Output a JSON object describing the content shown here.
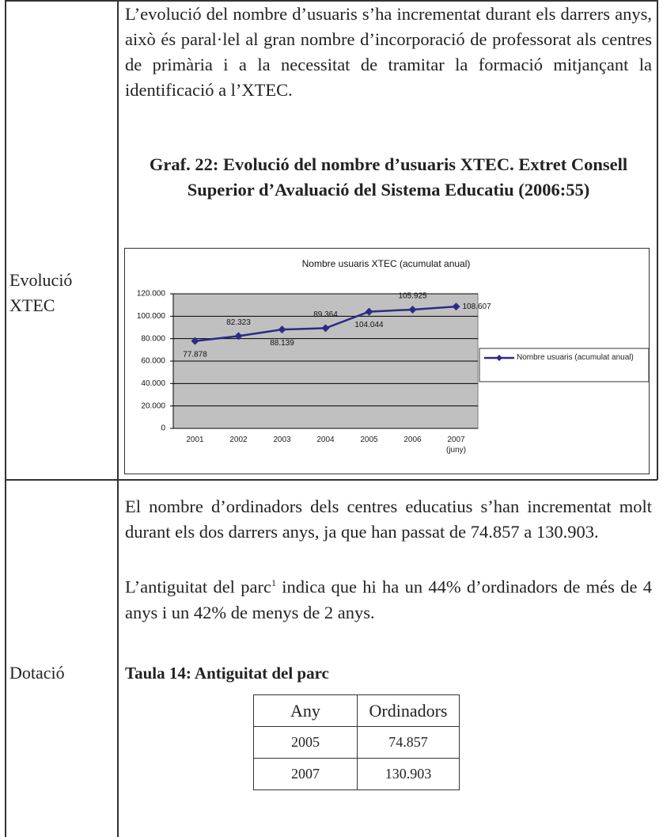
{
  "rows": [
    {
      "label": "Evolució XTEC",
      "paragraph": "L’evolució del nombre d’usuaris s’ha incrementat durant els darrers anys, això és paral·lel al gran nombre d’incorporació de professorat als centres de primària i a la necessitat de tramitar la formació mitjançant la identificació a l’XTEC.",
      "caption": "Graf. 22: Evolució del nombre d’usuaris XTEC. Extret Consell Superior d’Avaluació del Sistema Educatiu (2006:55)"
    },
    {
      "label": "Dotació",
      "paragraph": "El nombre d’ordinadors dels centres educatius s’han incrementat molt durant els dos darrers anys, ja que han passat de 74.857 a 130.903.",
      "paragraph2": {
        "before": "L’antiguitat del parc",
        "footnote": "1",
        "after": " indica que hi ha un 44% d’ordinadors de més de 4 anys i un 42% de menys de 2 anys."
      },
      "heading": "Taula 14: Antiguitat del parc"
    }
  ],
  "chart_data": {
    "type": "line",
    "title": "Nombre usuaris XTEC (acumulat anual)",
    "categories": [
      "2001",
      "2002",
      "2003",
      "2004",
      "2005",
      "2006",
      "2007 (juny)"
    ],
    "series": [
      {
        "name": "Nombre usuaris (acumulat anual)",
        "color": "#2b2b86",
        "values": [
          77878,
          82323,
          88139,
          89364,
          104044,
          105925,
          108607
        ],
        "value_labels": [
          "77.878",
          "82.323",
          "88.139",
          "89.364",
          "104.044",
          "105.925",
          "108.607"
        ]
      }
    ],
    "ylim": [
      0,
      120000
    ],
    "yticks": [
      {
        "value": 0,
        "label": "0"
      },
      {
        "value": 20000,
        "label": "20.000"
      },
      {
        "value": 40000,
        "label": "40.000"
      },
      {
        "value": 60000,
        "label": "60.000"
      },
      {
        "value": 80000,
        "label": "80.000"
      },
      {
        "value": 100000,
        "label": "100.000"
      },
      {
        "value": 120000,
        "label": "120.000"
      }
    ],
    "grid": true,
    "legend": "right"
  },
  "table": {
    "header": [
      "Any",
      "Ordinadors"
    ],
    "rows": [
      [
        "2005",
        "74.857"
      ],
      [
        "2007",
        "130.903"
      ]
    ]
  }
}
